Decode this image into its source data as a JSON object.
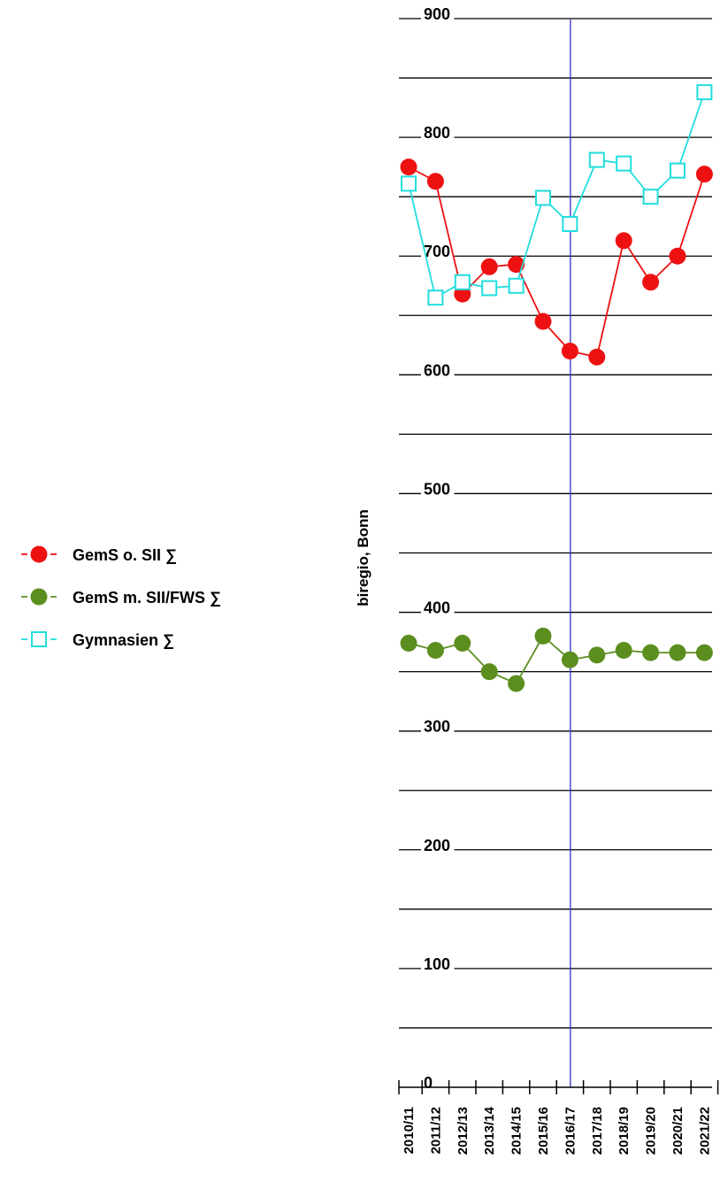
{
  "chart_data": {
    "type": "line",
    "ylabel": "biregio, Bonn",
    "xlabel": "",
    "ylim": [
      0,
      900
    ],
    "y_ticks": [
      0,
      100,
      200,
      300,
      400,
      500,
      600,
      700,
      800,
      900
    ],
    "y_tick_labels": [
      "0",
      "100",
      "200",
      "300",
      "400",
      "500",
      "600",
      "700",
      "800",
      "900"
    ],
    "grid": "horizontal",
    "legend_position": "left",
    "categories": [
      "2010/11",
      "2011/12",
      "2012/13",
      "2013/14",
      "2014/15",
      "2015/16",
      "2016/17",
      "2017/18",
      "2018/19",
      "2019/20",
      "2020/21",
      "2021/22"
    ],
    "reference_line": {
      "category": "2016/17",
      "color": "#3333cc"
    },
    "series": [
      {
        "name": "GemS o. SII ∑",
        "color": "#ee1111",
        "marker": "filled-circle",
        "values": [
          775,
          763,
          668,
          691,
          693,
          645,
          620,
          615,
          713,
          678,
          700,
          769
        ]
      },
      {
        "name": "GemS m. SII/FWS ∑",
        "color": "#5b8e1e",
        "marker": "filled-circle",
        "values": [
          374,
          368,
          374,
          350,
          340,
          380,
          360,
          364,
          368,
          366,
          366,
          366
        ]
      },
      {
        "name": "Gymnasien ∑",
        "color": "#22dddd",
        "marker": "open-square",
        "values": [
          761,
          665,
          678,
          673,
          675,
          749,
          727,
          781,
          778,
          750,
          772,
          838
        ]
      }
    ]
  }
}
